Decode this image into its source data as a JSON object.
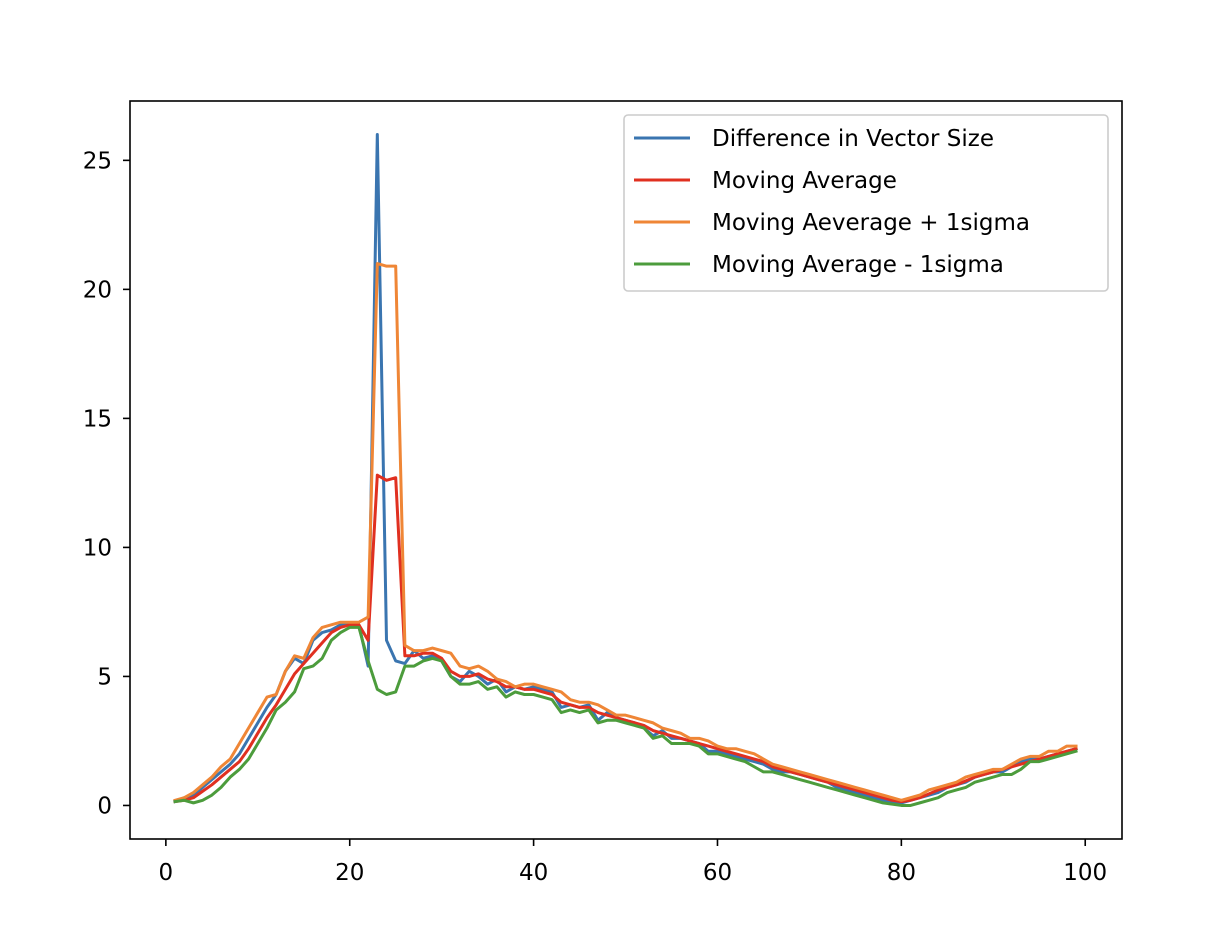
{
  "chart_data": {
    "type": "line",
    "title": "",
    "xlabel": "",
    "ylabel": "",
    "xlim": [
      -3.9,
      104
    ],
    "ylim": [
      -1.3,
      27.3
    ],
    "xticks": [
      0,
      20,
      40,
      60,
      80,
      100
    ],
    "yticks": [
      0,
      5,
      10,
      15,
      20,
      25
    ],
    "tick_labels_x": [
      "0",
      "20",
      "40",
      "60",
      "80",
      "100"
    ],
    "tick_labels_y": [
      "0",
      "5",
      "10",
      "15",
      "20",
      "25"
    ],
    "grid": false,
    "legend_position": "upper right",
    "colors": {
      "difference": "#3a75b0",
      "moving_average": "#e03020",
      "plus_sigma": "#ef8636",
      "minus_sigma": "#4c9c3c"
    },
    "x": [
      1,
      2,
      3,
      4,
      5,
      6,
      7,
      8,
      9,
      10,
      11,
      12,
      13,
      14,
      15,
      16,
      17,
      18,
      19,
      20,
      21,
      22,
      23,
      24,
      25,
      26,
      27,
      28,
      29,
      30,
      31,
      32,
      33,
      34,
      35,
      36,
      37,
      38,
      39,
      40,
      41,
      42,
      43,
      44,
      45,
      46,
      47,
      48,
      49,
      50,
      51,
      52,
      53,
      54,
      55,
      56,
      57,
      58,
      59,
      60,
      61,
      62,
      63,
      64,
      65,
      66,
      67,
      68,
      69,
      70,
      71,
      72,
      73,
      74,
      75,
      76,
      77,
      78,
      79,
      80,
      81,
      82,
      83,
      84,
      85,
      86,
      87,
      88,
      89,
      90,
      91,
      92,
      93,
      94,
      95,
      96,
      97,
      98,
      99
    ],
    "series": [
      {
        "name": "Difference in Vector Size",
        "color_key": "difference",
        "values": [
          0.15,
          0.3,
          0.4,
          0.7,
          1.0,
          1.3,
          1.6,
          2.0,
          2.6,
          3.2,
          3.8,
          4.3,
          5.2,
          5.7,
          5.5,
          6.4,
          6.7,
          6.8,
          7.0,
          7.0,
          7.0,
          5.4,
          26.0,
          6.4,
          5.6,
          5.5,
          6.0,
          5.7,
          5.8,
          5.6,
          5.0,
          4.8,
          5.2,
          5.0,
          4.7,
          4.9,
          4.4,
          4.6,
          4.5,
          4.6,
          4.5,
          4.4,
          3.8,
          3.9,
          3.8,
          3.9,
          3.3,
          3.6,
          3.4,
          3.3,
          3.2,
          3.0,
          2.7,
          2.9,
          2.6,
          2.6,
          2.5,
          2.4,
          2.1,
          2.1,
          2.0,
          1.9,
          1.8,
          1.7,
          1.6,
          1.4,
          1.3,
          1.3,
          1.2,
          1.1,
          1.0,
          0.9,
          0.7,
          0.6,
          0.5,
          0.4,
          0.3,
          0.2,
          0.1,
          0.1,
          0.2,
          0.3,
          0.4,
          0.5,
          0.7,
          0.8,
          0.9,
          1.1,
          1.2,
          1.3,
          1.3,
          1.5,
          1.7,
          1.8,
          1.8,
          1.9,
          2.0,
          2.1,
          2.2
        ]
      },
      {
        "name": "Moving Average",
        "color_key": "moving_average",
        "values": [
          0.15,
          0.2,
          0.3,
          0.55,
          0.8,
          1.1,
          1.4,
          1.7,
          2.2,
          2.8,
          3.4,
          3.9,
          4.5,
          5.1,
          5.5,
          5.9,
          6.3,
          6.7,
          6.9,
          7.0,
          7.0,
          6.4,
          12.8,
          12.6,
          12.7,
          5.8,
          5.8,
          5.9,
          5.9,
          5.7,
          5.2,
          5.0,
          5.0,
          5.1,
          4.9,
          4.8,
          4.6,
          4.6,
          4.5,
          4.5,
          4.4,
          4.3,
          4.0,
          3.9,
          3.8,
          3.8,
          3.6,
          3.5,
          3.4,
          3.3,
          3.2,
          3.1,
          2.9,
          2.8,
          2.7,
          2.6,
          2.5,
          2.4,
          2.3,
          2.2,
          2.1,
          2.0,
          1.9,
          1.8,
          1.7,
          1.5,
          1.4,
          1.3,
          1.2,
          1.1,
          1.0,
          0.9,
          0.8,
          0.7,
          0.6,
          0.5,
          0.4,
          0.3,
          0.2,
          0.15,
          0.2,
          0.3,
          0.45,
          0.6,
          0.7,
          0.8,
          0.95,
          1.1,
          1.2,
          1.3,
          1.4,
          1.5,
          1.6,
          1.7,
          1.8,
          1.9,
          2.0,
          2.1,
          2.2
        ]
      },
      {
        "name": "Moving Aeverage + 1sigma",
        "color_key": "plus_sigma",
        "values": [
          0.2,
          0.3,
          0.5,
          0.8,
          1.1,
          1.5,
          1.8,
          2.4,
          3.0,
          3.6,
          4.2,
          4.3,
          5.2,
          5.8,
          5.7,
          6.5,
          6.9,
          7.0,
          7.1,
          7.1,
          7.1,
          7.3,
          21.0,
          20.9,
          20.9,
          6.2,
          6.0,
          6.0,
          6.1,
          6.0,
          5.9,
          5.4,
          5.3,
          5.4,
          5.2,
          4.9,
          4.8,
          4.6,
          4.7,
          4.7,
          4.6,
          4.5,
          4.4,
          4.1,
          4.0,
          4.0,
          3.9,
          3.7,
          3.5,
          3.5,
          3.4,
          3.3,
          3.2,
          3.0,
          2.9,
          2.8,
          2.6,
          2.6,
          2.5,
          2.3,
          2.2,
          2.2,
          2.1,
          2.0,
          1.8,
          1.6,
          1.5,
          1.4,
          1.3,
          1.2,
          1.1,
          1.0,
          0.9,
          0.8,
          0.7,
          0.6,
          0.5,
          0.4,
          0.3,
          0.2,
          0.3,
          0.4,
          0.6,
          0.7,
          0.8,
          0.9,
          1.1,
          1.2,
          1.3,
          1.4,
          1.4,
          1.6,
          1.8,
          1.9,
          1.9,
          2.1,
          2.1,
          2.3,
          2.3
        ]
      },
      {
        "name": "Moving Average - 1sigma",
        "color_key": "minus_sigma",
        "values": [
          0.15,
          0.2,
          0.1,
          0.2,
          0.4,
          0.7,
          1.1,
          1.4,
          1.8,
          2.4,
          3.0,
          3.7,
          4.0,
          4.4,
          5.3,
          5.4,
          5.7,
          6.4,
          6.7,
          6.9,
          6.9,
          5.6,
          4.5,
          4.3,
          4.4,
          5.4,
          5.4,
          5.6,
          5.7,
          5.6,
          5.0,
          4.7,
          4.7,
          4.8,
          4.5,
          4.6,
          4.2,
          4.4,
          4.3,
          4.3,
          4.2,
          4.1,
          3.6,
          3.7,
          3.6,
          3.7,
          3.2,
          3.3,
          3.3,
          3.2,
          3.1,
          3.0,
          2.6,
          2.7,
          2.4,
          2.4,
          2.4,
          2.3,
          2.0,
          2.0,
          1.9,
          1.8,
          1.7,
          1.5,
          1.3,
          1.3,
          1.2,
          1.1,
          1.0,
          0.9,
          0.8,
          0.7,
          0.6,
          0.5,
          0.4,
          0.3,
          0.2,
          0.1,
          0.05,
          0.0,
          0.0,
          0.1,
          0.2,
          0.3,
          0.5,
          0.6,
          0.7,
          0.9,
          1.0,
          1.1,
          1.2,
          1.2,
          1.4,
          1.7,
          1.7,
          1.8,
          1.9,
          2.0,
          2.1
        ]
      }
    ]
  }
}
